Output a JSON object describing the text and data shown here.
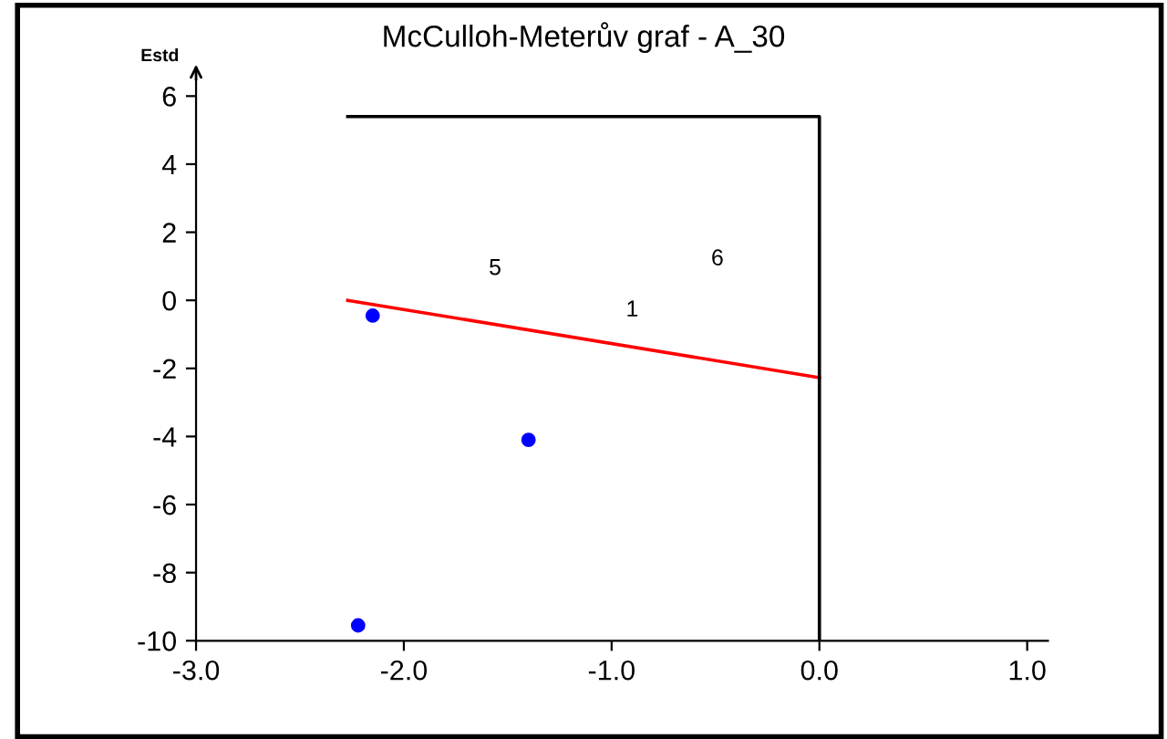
{
  "chart_data": {
    "type": "scatter",
    "title": "McCulloh-Meterův graf - A_30",
    "ylabel": "Estd",
    "xlim": [
      -3.0,
      1.1
    ],
    "ylim": [
      -10,
      6.5
    ],
    "xticks": [
      {
        "value": -3.0,
        "label": "-3.0"
      },
      {
        "value": -2.0,
        "label": "-2.0"
      },
      {
        "value": -1.0,
        "label": "-1.0"
      },
      {
        "value": 0.0,
        "label": "0.0"
      },
      {
        "value": 1.0,
        "label": "1.0"
      }
    ],
    "yticks": [
      -10,
      -8,
      -6,
      -4,
      -2,
      0,
      2,
      4,
      6
    ],
    "grid": false,
    "legend": false,
    "series": [
      {
        "color": "#0000ff",
        "marker": "circle",
        "x": [
          -2.15,
          -1.4,
          -2.22
        ],
        "values": [
          -0.45,
          -4.1,
          -9.55
        ]
      },
      {
        "type": "line",
        "color": "#ff0000",
        "marker": "none",
        "line_style": "solid",
        "x": [
          -2.27,
          0.0
        ],
        "values": [
          0.0,
          -2.27
        ]
      },
      {
        "type": "line",
        "color": "#000000",
        "marker": "none",
        "line_style": "solid",
        "x": [
          -2.27,
          0.0,
          0.0
        ],
        "values": [
          5.4,
          5.4,
          -10
        ]
      }
    ],
    "annotations": [
      "5",
      "6",
      "1"
    ]
  }
}
